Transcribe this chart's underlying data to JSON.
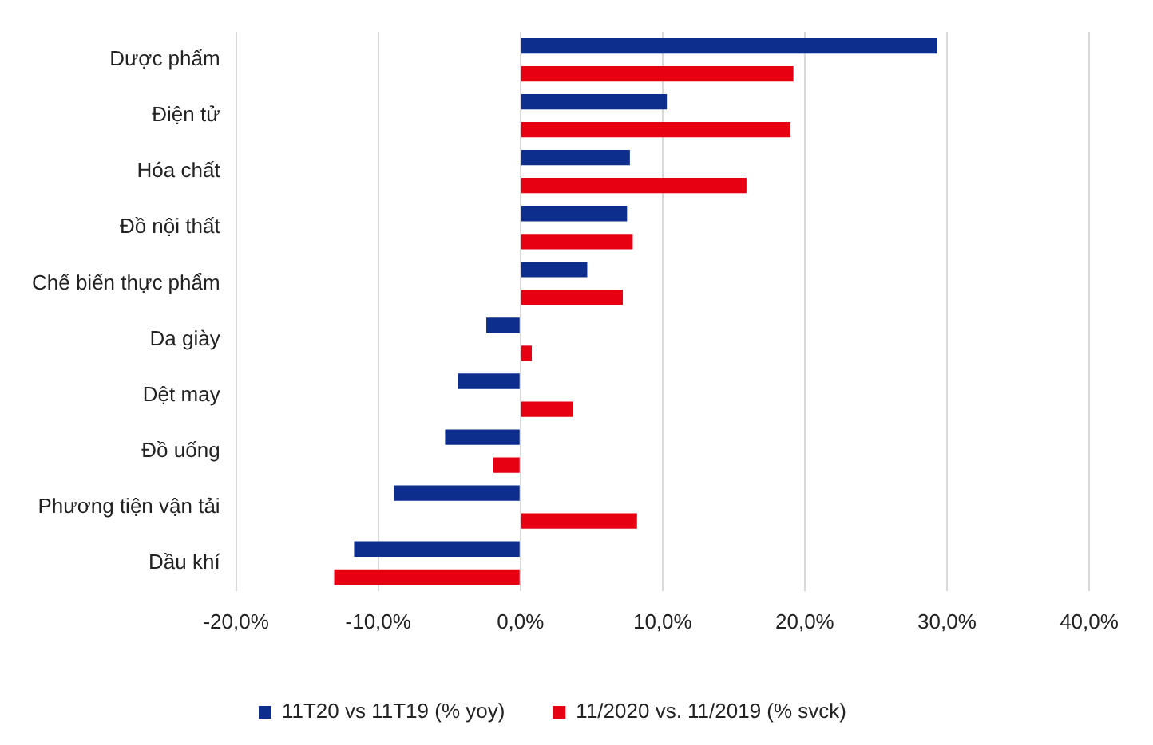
{
  "chart_data": {
    "type": "bar",
    "orientation": "horizontal",
    "categories": [
      "Dược phẩm",
      "Điện tử",
      "Hóa chất",
      "Đồ nội thất",
      "Chế biến thực phẩm",
      "Da giày",
      "Dệt may",
      "Đồ uống",
      "Phương tiện vận tải",
      "Dầu khí"
    ],
    "series": [
      {
        "name": "11T20 vs 11T19 (% yoy)",
        "color": "#0d2e8c",
        "values": [
          29.3,
          10.3,
          7.7,
          7.5,
          4.7,
          -2.4,
          -4.4,
          -5.3,
          -8.9,
          -11.7
        ]
      },
      {
        "name": "11/2020 vs. 11/2019 (% svck)",
        "color": "#e60012",
        "values": [
          19.2,
          19.0,
          15.9,
          7.9,
          7.2,
          0.8,
          3.7,
          -1.9,
          8.2,
          -13.1
        ]
      }
    ],
    "xlim": [
      -20,
      40
    ],
    "xticks": [
      {
        "value": -20,
        "label": "-20,0%"
      },
      {
        "value": -10,
        "label": "-10,0%"
      },
      {
        "value": 0,
        "label": "0,0%"
      },
      {
        "value": 10,
        "label": "10,0%"
      },
      {
        "value": 20,
        "label": "20,0%"
      },
      {
        "value": 30,
        "label": "30,0%"
      },
      {
        "value": 40,
        "label": "40,0%"
      }
    ],
    "grid": "x",
    "legend": "bottom"
  }
}
